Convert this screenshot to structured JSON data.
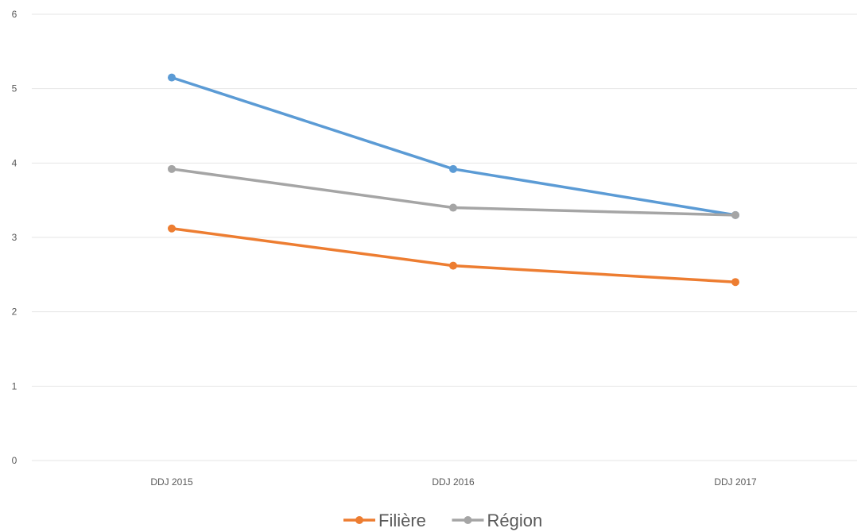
{
  "chart_data": {
    "type": "line",
    "title": "",
    "xlabel": "",
    "ylabel": "",
    "categories": [
      "DDJ 2015",
      "DDJ 2016",
      "DDJ 2017"
    ],
    "ylim": [
      0,
      6
    ],
    "yticks": [
      0,
      1,
      2,
      3,
      4,
      5,
      6
    ],
    "grid": true,
    "legend_position": "bottom",
    "series": [
      {
        "values": [
          5.15,
          3.92,
          3.3
        ],
        "color": "#5b9bd5"
      },
      {
        "name": "Région",
        "values": [
          3.92,
          3.4,
          3.3
        ],
        "color": "#a5a5a5"
      },
      {
        "name": "Filière",
        "values": [
          3.12,
          2.62,
          2.4
        ],
        "color": "#ed7d31"
      }
    ],
    "legend": [
      {
        "series_index": 2,
        "label": "Filière",
        "color": "#ed7d31"
      },
      {
        "series_index": 1,
        "label": "Région",
        "color": "#a5a5a5"
      }
    ]
  }
}
